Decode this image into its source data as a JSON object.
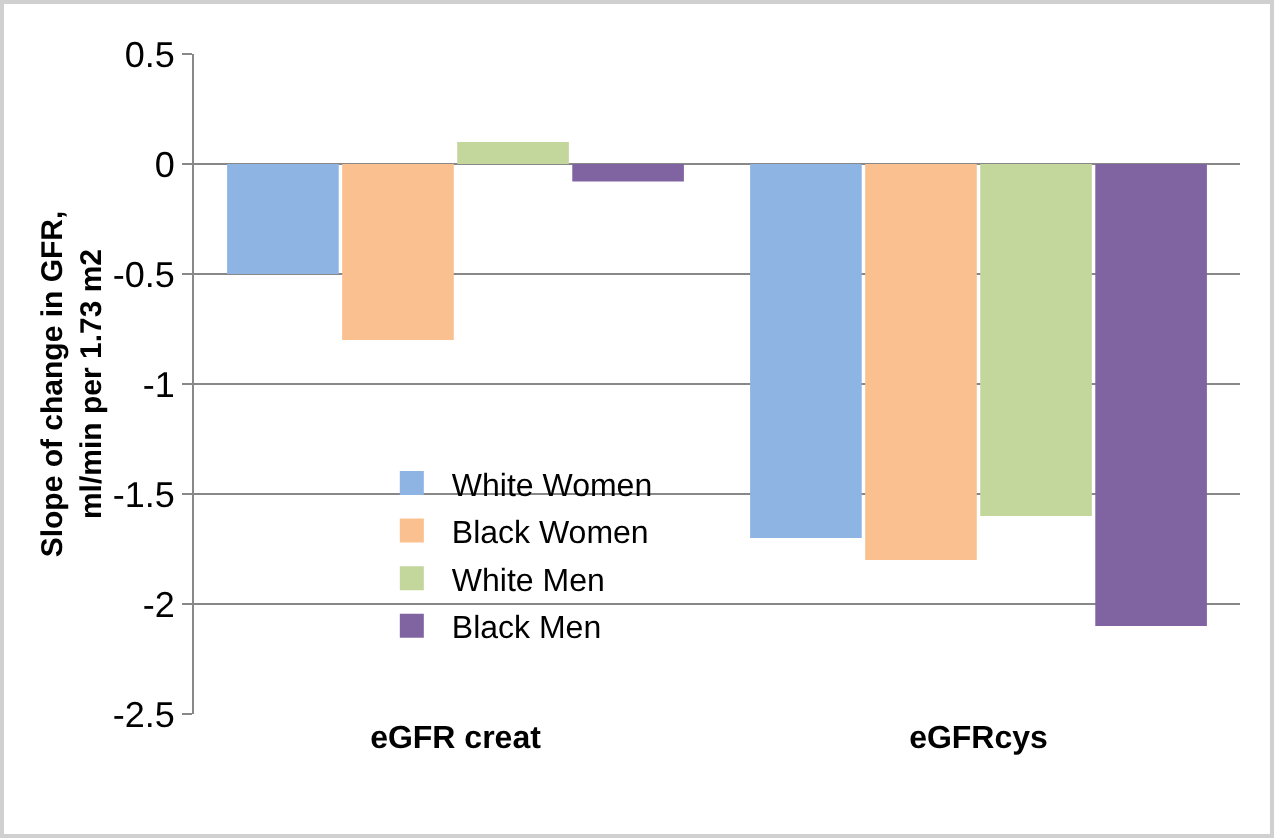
{
  "chart_data": {
    "type": "bar",
    "ylabel": "Slope of change in GFR,\nml/min per 1.73 m2",
    "categories": [
      "eGFR creat",
      "eGFRcys"
    ],
    "series": [
      {
        "name": "White Women",
        "color": "#8eb4e3",
        "values": [
          -0.5,
          -1.7
        ]
      },
      {
        "name": "Black Women",
        "color": "#fac090",
        "values": [
          -0.8,
          -1.8
        ]
      },
      {
        "name": "White Men",
        "color": "#c3d69b",
        "values": [
          0.1,
          -1.6
        ]
      },
      {
        "name": "Black Men",
        "color": "#8064a2",
        "values": [
          -0.08,
          -2.1
        ]
      }
    ],
    "ylim": [
      -2.5,
      0.5
    ],
    "yticks": [
      0.5,
      0,
      -0.5,
      -1,
      -1.5,
      -2,
      -2.5
    ],
    "grid": "y",
    "legend": "bottom left"
  }
}
